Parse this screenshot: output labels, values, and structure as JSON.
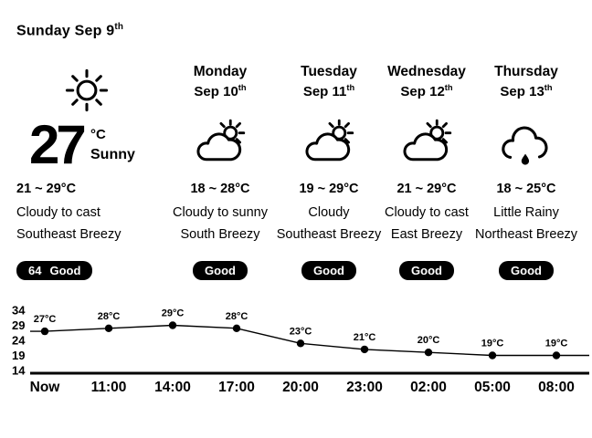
{
  "colors": {
    "fg": "#000000",
    "bg": "#ffffff",
    "badge_bg": "#000000",
    "badge_fg": "#ffffff"
  },
  "header": {
    "title": "Sunday Sep 9",
    "title_sup": "th"
  },
  "today": {
    "icon": "sun-icon",
    "temp": "27",
    "unit": "°C",
    "condition": "Sunny",
    "range": "21 ~ 29°C",
    "sky": "Cloudy to cast",
    "wind": "Southeast Breezy",
    "badge_value": "64",
    "badge_label": "Good"
  },
  "forecast": [
    {
      "day": "Monday",
      "date": "Sep 10",
      "date_sup": "th",
      "icon": "cloud-sun-icon",
      "range": "18 ~ 28°C",
      "sky": "Cloudy to sunny",
      "wind": "South Breezy",
      "badge": "Good"
    },
    {
      "day": "Tuesday",
      "date": "Sep 11",
      "date_sup": "th",
      "icon": "cloud-sun-icon",
      "range": "19 ~ 29°C",
      "sky": "Cloudy",
      "wind": "Southeast Breezy",
      "badge": "Good"
    },
    {
      "day": "Wednesday",
      "date": "Sep 12",
      "date_sup": "th",
      "icon": "cloud-sun-icon",
      "range": "21 ~ 29°C",
      "sky": "Cloudy to cast",
      "wind": "East Breezy",
      "badge": "Good"
    },
    {
      "day": "Thursday",
      "date": "Sep 13",
      "date_sup": "th",
      "icon": "cloud-rain-icon",
      "range": "18 ~ 25°C",
      "sky": "Little Rainy",
      "wind": "Northeast Breezy",
      "badge": "Good"
    }
  ],
  "chart_data": {
    "type": "line",
    "title": "",
    "xlabel": "",
    "ylabel": "",
    "x": [
      "Now",
      "11:00",
      "14:00",
      "17:00",
      "20:00",
      "23:00",
      "02:00",
      "05:00",
      "08:00"
    ],
    "values": [
      27,
      28,
      29,
      28,
      23,
      21,
      20,
      19,
      19
    ],
    "point_labels": [
      "27°C",
      "28°C",
      "29°C",
      "28°C",
      "23°C",
      "21°C",
      "20°C",
      "19°C",
      "19°C"
    ],
    "y_ticks": [
      34,
      29,
      24,
      19,
      14
    ],
    "ylim": [
      14,
      34
    ],
    "grid": false,
    "legend": "none"
  }
}
